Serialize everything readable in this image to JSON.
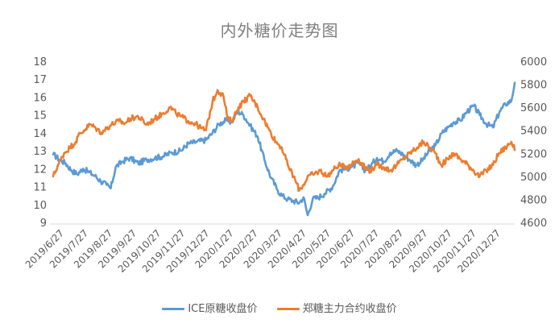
{
  "chart_data": {
    "type": "line",
    "title": "内外糖价走势图",
    "x_tick_labels": [
      "2019/6/27",
      "2019/7/27",
      "2019/8/27",
      "2019/9/27",
      "2019/10/27",
      "2019/11/27",
      "2019/12/27",
      "2020/1/27",
      "2020/2/27",
      "2020/3/27",
      "2020/4/27",
      "2020/5/27",
      "2020/6/27",
      "2020/7/27",
      "2020/8/27",
      "2020/9/27",
      "2020/10/27",
      "2020/11/27",
      "2020/12/27"
    ],
    "xlim": [
      "2019-06-27",
      "2020-12-31"
    ],
    "y_left": {
      "lim": [
        9,
        18
      ],
      "ticks": [
        9,
        10,
        11,
        12,
        13,
        14,
        15,
        16,
        17,
        18
      ]
    },
    "y_right": {
      "lim": [
        4600,
        6000
      ],
      "ticks": [
        4600,
        4800,
        5000,
        5200,
        5400,
        5600,
        5800,
        6000
      ]
    },
    "grid": false,
    "legend": "bottom",
    "series": [
      {
        "name": "ICE原糖收盘价",
        "axis": "left",
        "color": "#5b9bd5",
        "points": [
          [
            "2019-06-27",
            12.8
          ],
          [
            "2019-07-05",
            12.5
          ],
          [
            "2019-07-12",
            12.3
          ],
          [
            "2019-07-19",
            11.9
          ],
          [
            "2019-07-26",
            11.7
          ],
          [
            "2019-08-02",
            12.0
          ],
          [
            "2019-08-09",
            11.8
          ],
          [
            "2019-08-16",
            11.6
          ],
          [
            "2019-08-23",
            11.3
          ],
          [
            "2019-08-30",
            11.1
          ],
          [
            "2019-09-04",
            10.9
          ],
          [
            "2019-09-10",
            12.1
          ],
          [
            "2019-09-18",
            12.4
          ],
          [
            "2019-09-27",
            12.6
          ],
          [
            "2019-10-07",
            12.3
          ],
          [
            "2019-10-17",
            12.5
          ],
          [
            "2019-10-27",
            12.6
          ],
          [
            "2019-11-06",
            12.7
          ],
          [
            "2019-11-16",
            12.9
          ],
          [
            "2019-11-27",
            13.0
          ],
          [
            "2019-12-06",
            13.4
          ],
          [
            "2019-12-16",
            13.5
          ],
          [
            "2019-12-27",
            13.6
          ],
          [
            "2020-01-04",
            14.0
          ],
          [
            "2020-01-12",
            14.5
          ],
          [
            "2020-01-20",
            14.7
          ],
          [
            "2020-01-27",
            14.6
          ],
          [
            "2020-02-03",
            15.2
          ],
          [
            "2020-02-10",
            15.0
          ],
          [
            "2020-02-18",
            14.4
          ],
          [
            "2020-02-27",
            13.8
          ],
          [
            "2020-03-06",
            12.5
          ],
          [
            "2020-03-14",
            11.5
          ],
          [
            "2020-03-22",
            10.8
          ],
          [
            "2020-03-27",
            10.5
          ],
          [
            "2020-04-03",
            10.3
          ],
          [
            "2020-04-10",
            10.2
          ],
          [
            "2020-04-17",
            10.1
          ],
          [
            "2020-04-22",
            10.4
          ],
          [
            "2020-04-27",
            9.4
          ],
          [
            "2020-05-03",
            10.3
          ],
          [
            "2020-05-10",
            10.4
          ],
          [
            "2020-05-17",
            10.6
          ],
          [
            "2020-05-27",
            11.0
          ],
          [
            "2020-06-04",
            11.9
          ],
          [
            "2020-06-12",
            12.0
          ],
          [
            "2020-06-19",
            12.1
          ],
          [
            "2020-06-27",
            12.3
          ],
          [
            "2020-07-05",
            11.9
          ],
          [
            "2020-07-12",
            12.2
          ],
          [
            "2020-07-19",
            12.6
          ],
          [
            "2020-07-27",
            12.4
          ],
          [
            "2020-08-04",
            12.9
          ],
          [
            "2020-08-12",
            13.0
          ],
          [
            "2020-08-19",
            12.8
          ],
          [
            "2020-08-27",
            12.5
          ],
          [
            "2020-09-04",
            12.2
          ],
          [
            "2020-09-12",
            12.5
          ],
          [
            "2020-09-20",
            13.0
          ],
          [
            "2020-09-27",
            13.3
          ],
          [
            "2020-10-05",
            14.0
          ],
          [
            "2020-10-12",
            14.3
          ],
          [
            "2020-10-19",
            14.6
          ],
          [
            "2020-10-27",
            14.7
          ],
          [
            "2020-11-04",
            15.2
          ],
          [
            "2020-11-12",
            15.5
          ],
          [
            "2020-11-19",
            15.0
          ],
          [
            "2020-11-27",
            14.5
          ],
          [
            "2020-12-05",
            14.3
          ],
          [
            "2020-12-13",
            15.2
          ],
          [
            "2020-12-20",
            15.6
          ],
          [
            "2020-12-27",
            15.8
          ],
          [
            "2020-12-31",
            16.8
          ]
        ]
      },
      {
        "name": "郑糖主力合约收盘价",
        "axis": "right",
        "color": "#ed7d31",
        "points": [
          [
            "2019-06-27",
            5000
          ],
          [
            "2019-07-03",
            5100
          ],
          [
            "2019-07-10",
            5200
          ],
          [
            "2019-07-17",
            5250
          ],
          [
            "2019-07-24",
            5300
          ],
          [
            "2019-07-27",
            5350
          ],
          [
            "2019-08-03",
            5400
          ],
          [
            "2019-08-10",
            5450
          ],
          [
            "2019-08-17",
            5420
          ],
          [
            "2019-08-24",
            5380
          ],
          [
            "2019-08-27",
            5400
          ],
          [
            "2019-09-05",
            5450
          ],
          [
            "2019-09-14",
            5480
          ],
          [
            "2019-09-21",
            5460
          ],
          [
            "2019-09-27",
            5500
          ],
          [
            "2019-10-07",
            5520
          ],
          [
            "2019-10-17",
            5450
          ],
          [
            "2019-10-27",
            5500
          ],
          [
            "2019-11-06",
            5550
          ],
          [
            "2019-11-14",
            5600
          ],
          [
            "2019-11-21",
            5550
          ],
          [
            "2019-11-27",
            5520
          ],
          [
            "2019-12-06",
            5480
          ],
          [
            "2019-12-14",
            5460
          ],
          [
            "2019-12-21",
            5420
          ],
          [
            "2019-12-27",
            5400
          ],
          [
            "2020-01-04",
            5650
          ],
          [
            "2020-01-10",
            5750
          ],
          [
            "2020-01-17",
            5700
          ],
          [
            "2020-01-22",
            5500
          ],
          [
            "2020-01-27",
            5480
          ],
          [
            "2020-02-04",
            5600
          ],
          [
            "2020-02-10",
            5650
          ],
          [
            "2020-02-18",
            5700
          ],
          [
            "2020-02-27",
            5600
          ],
          [
            "2020-03-05",
            5500
          ],
          [
            "2020-03-12",
            5400
          ],
          [
            "2020-03-20",
            5300
          ],
          [
            "2020-03-27",
            5250
          ],
          [
            "2020-04-03",
            5100
          ],
          [
            "2020-04-10",
            5000
          ],
          [
            "2020-04-17",
            4880
          ],
          [
            "2020-04-24",
            4950
          ],
          [
            "2020-04-27",
            5000
          ],
          [
            "2020-05-05",
            5020
          ],
          [
            "2020-05-12",
            5050
          ],
          [
            "2020-05-20",
            5000
          ],
          [
            "2020-05-27",
            5050
          ],
          [
            "2020-06-03",
            5100
          ],
          [
            "2020-06-10",
            5080
          ],
          [
            "2020-06-17",
            5100
          ],
          [
            "2020-06-27",
            5150
          ],
          [
            "2020-07-04",
            5080
          ],
          [
            "2020-07-11",
            5050
          ],
          [
            "2020-07-19",
            5100
          ],
          [
            "2020-07-27",
            5080
          ],
          [
            "2020-08-04",
            5050
          ],
          [
            "2020-08-12",
            5100
          ],
          [
            "2020-08-19",
            5150
          ],
          [
            "2020-08-27",
            5200
          ],
          [
            "2020-09-05",
            5250
          ],
          [
            "2020-09-13",
            5300
          ],
          [
            "2020-09-20",
            5250
          ],
          [
            "2020-09-27",
            5200
          ],
          [
            "2020-10-04",
            5100
          ],
          [
            "2020-10-12",
            5150
          ],
          [
            "2020-10-19",
            5200
          ],
          [
            "2020-10-27",
            5150
          ],
          [
            "2020-11-05",
            5100
          ],
          [
            "2020-11-12",
            5050
          ],
          [
            "2020-11-19",
            5000
          ],
          [
            "2020-11-27",
            5050
          ],
          [
            "2020-12-05",
            5100
          ],
          [
            "2020-12-12",
            5200
          ],
          [
            "2020-12-20",
            5250
          ],
          [
            "2020-12-27",
            5300
          ],
          [
            "2020-12-31",
            5230
          ]
        ]
      }
    ]
  }
}
